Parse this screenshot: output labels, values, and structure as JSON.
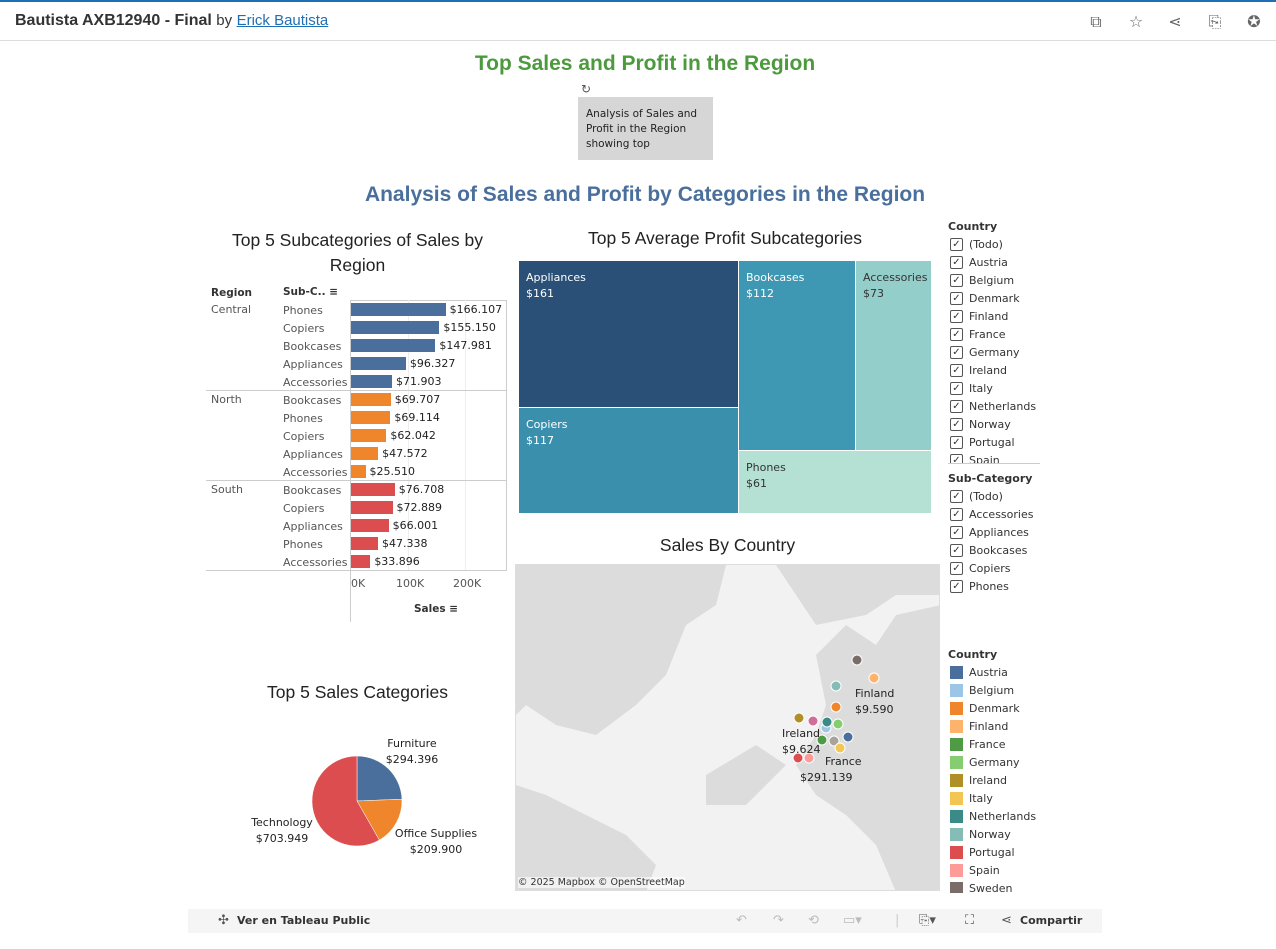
{
  "header": {
    "title": "Bautista AXB12940 - Final",
    "by": "by",
    "author": "Erick Bautista",
    "icons": [
      "copy-icon",
      "star-icon",
      "share-icon",
      "download-icon",
      "badge-icon"
    ]
  },
  "dashboard": {
    "main_title": "Top Sales and Profit in the Region",
    "note": "Analysis of Sales and Profit in the Region showing top",
    "subtitle": "Analysis of Sales and Profit by Categories in the Region"
  },
  "bar_chart": {
    "title": "Top 5 Subcategories of Sales by Region",
    "col_region": "Region",
    "col_sub": "Sub-C..",
    "xlabel": "Sales",
    "ticks": [
      "0K",
      "100K",
      "200K"
    ],
    "groups": [
      {
        "region": "Central",
        "color": "#4a6f9c",
        "rows": [
          [
            "Phones",
            166107,
            "$166.107"
          ],
          [
            "Copiers",
            155150,
            "$155.150"
          ],
          [
            "Bookcases",
            147981,
            "$147.981"
          ],
          [
            "Appliances",
            96327,
            "$96.327"
          ],
          [
            "Accessories",
            71903,
            "$71.903"
          ]
        ]
      },
      {
        "region": "North",
        "color": "#f0862b",
        "rows": [
          [
            "Bookcases",
            69707,
            "$69.707"
          ],
          [
            "Phones",
            69114,
            "$69.114"
          ],
          [
            "Copiers",
            62042,
            "$62.042"
          ],
          [
            "Appliances",
            47572,
            "$47.572"
          ],
          [
            "Accessories",
            25510,
            "$25.510"
          ]
        ]
      },
      {
        "region": "South",
        "color": "#dc4d50",
        "rows": [
          [
            "Bookcases",
            76708,
            "$76.708"
          ],
          [
            "Copiers",
            72889,
            "$72.889"
          ],
          [
            "Appliances",
            66001,
            "$66.001"
          ],
          [
            "Phones",
            47338,
            "$47.338"
          ],
          [
            "Accessories",
            33896,
            "$33.896"
          ]
        ]
      }
    ]
  },
  "treemap": {
    "title": "Top 5 Average Profit Subcategories",
    "items": [
      {
        "name": "Appliances",
        "value": "$161",
        "color": "#2a5078"
      },
      {
        "name": "Copiers",
        "value": "$117",
        "color": "#3a8fad"
      },
      {
        "name": "Bookcases",
        "value": "$112",
        "color": "#3e97b3"
      },
      {
        "name": "Accessories",
        "value": "$73",
        "color": "#94cecb"
      },
      {
        "name": "Phones",
        "value": "$61",
        "color": "#b4e1d3"
      }
    ]
  },
  "pie": {
    "title": "Top 5 Sales Categories",
    "slices": [
      {
        "name": "Furniture",
        "value": 294396,
        "label": "$294.396",
        "color": "#4a6f9c"
      },
      {
        "name": "Office Supplies",
        "value": 209900,
        "label": "$209.900",
        "color": "#f0862b"
      },
      {
        "name": "Technology",
        "value": 703949,
        "label": "$703.949",
        "color": "#dc4d50"
      }
    ]
  },
  "map": {
    "title": "Sales By Country",
    "attribution": "© 2025 Mapbox  © OpenStreetMap",
    "labels": [
      {
        "name": "Finland",
        "value": "$9.590"
      },
      {
        "name": "Ireland",
        "value": "$9.624"
      },
      {
        "name": "France",
        "value": "$291.139"
      }
    ]
  },
  "filters": {
    "country_title": "Country",
    "country": [
      "(Todo)",
      "Austria",
      "Belgium",
      "Denmark",
      "Finland",
      "France",
      "Germany",
      "Ireland",
      "Italy",
      "Netherlands",
      "Norway",
      "Portugal",
      "Spain"
    ],
    "sub_title": "Sub-Category",
    "sub": [
      "(Todo)",
      "Accessories",
      "Appliances",
      "Bookcases",
      "Copiers",
      "Phones"
    ]
  },
  "legend": {
    "title": "Country",
    "items": [
      {
        "name": "Austria",
        "color": "#4a6f9c"
      },
      {
        "name": "Belgium",
        "color": "#9dc6e6"
      },
      {
        "name": "Denmark",
        "color": "#f0862b"
      },
      {
        "name": "Finland",
        "color": "#fdb36b"
      },
      {
        "name": "France",
        "color": "#4f9a44"
      },
      {
        "name": "Germany",
        "color": "#86cc71"
      },
      {
        "name": "Ireland",
        "color": "#b08f27"
      },
      {
        "name": "Italy",
        "color": "#f3c653"
      },
      {
        "name": "Netherlands",
        "color": "#3a8b87"
      },
      {
        "name": "Norway",
        "color": "#86bcb6"
      },
      {
        "name": "Portugal",
        "color": "#dc4d50"
      },
      {
        "name": "Spain",
        "color": "#fd9b98"
      },
      {
        "name": "Sweden",
        "color": "#7a6c68"
      }
    ]
  },
  "footer": {
    "view": "Ver en Tableau Public",
    "share": "Compartir"
  }
}
